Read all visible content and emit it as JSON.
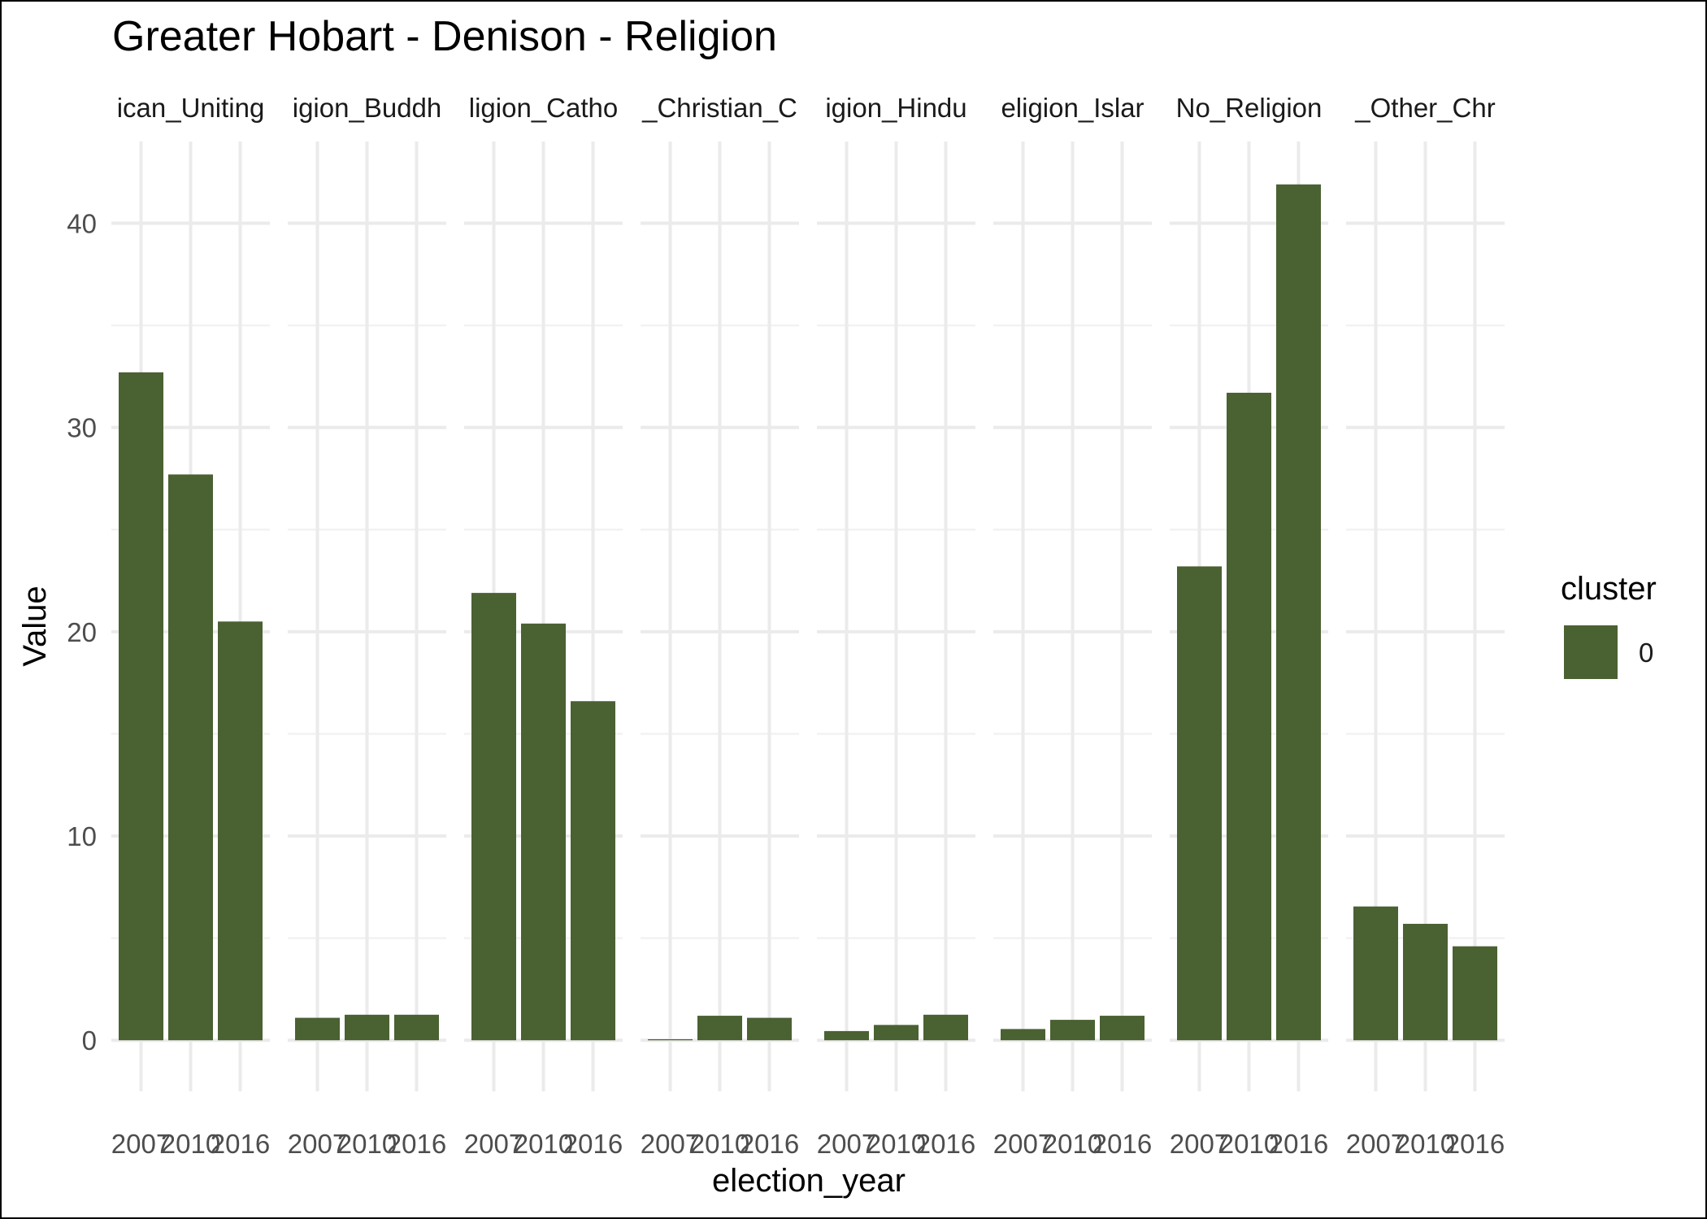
{
  "chart_data": {
    "type": "bar",
    "title": "Greater Hobart - Denison - Religion",
    "xlabel": "election_year",
    "ylabel": "Value",
    "ylim": [
      -2.5,
      44
    ],
    "yticks": [
      0,
      10,
      20,
      30,
      40
    ],
    "x_categories": [
      "2007",
      "2010",
      "2016"
    ],
    "facets": [
      {
        "label": "ican_Uniting",
        "values": [
          32.7,
          27.7,
          20.5
        ]
      },
      {
        "label": "igion_Buddh",
        "values": [
          1.1,
          1.25,
          1.25
        ]
      },
      {
        "label": "ligion_Catho",
        "values": [
          21.9,
          20.4,
          16.6
        ]
      },
      {
        "label": "_Christian_C",
        "values": [
          0.05,
          1.2,
          1.1
        ]
      },
      {
        "label": "igion_Hindu",
        "values": [
          0.45,
          0.75,
          1.25
        ]
      },
      {
        "label": "eligion_Islar",
        "values": [
          0.55,
          1.0,
          1.2
        ]
      },
      {
        "label": "No_Religion",
        "values": [
          23.2,
          31.7,
          41.9
        ]
      },
      {
        "label": "_Other_Chr",
        "values": [
          6.55,
          5.7,
          4.6
        ]
      }
    ],
    "legend": {
      "title": "cluster",
      "items": [
        {
          "label": "0",
          "color": "#4a6132"
        }
      ],
      "position": "right"
    },
    "bar_color": "#4a6132",
    "grid": true
  }
}
